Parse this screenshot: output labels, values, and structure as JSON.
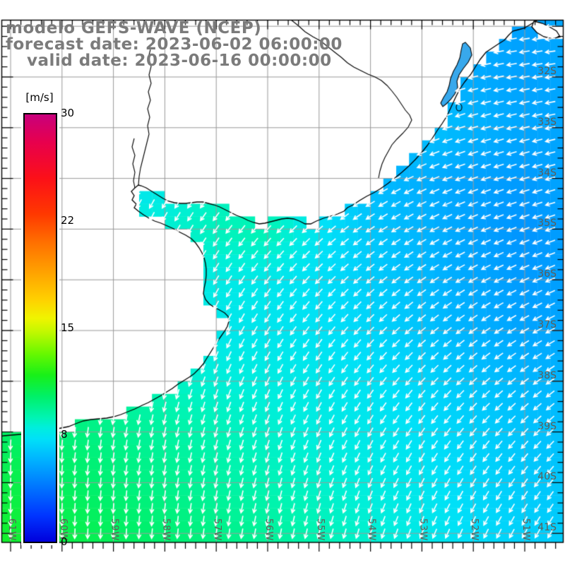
{
  "title": {
    "line1": "modelo GEFS-WAVE (NCEP)",
    "line2": "forecast date: 2023-06-02 06:00:00",
    "line3": "valid date: 2023-06-16 00:00:00"
  },
  "colorbar": {
    "unit": "[m/s]",
    "tick_labels": [
      "30",
      "22",
      "15",
      "8",
      "0"
    ],
    "min": 0,
    "max": 30
  },
  "axes": {
    "lat_labels": [
      "32S",
      "33S",
      "34S",
      "35S",
      "36S",
      "37S",
      "38S",
      "39S",
      "40S",
      "41S"
    ],
    "lon_labels": [
      "61W",
      "60W",
      "59W",
      "58W",
      "57W",
      "56W",
      "55W",
      "54W",
      "53W",
      "52W",
      "51W"
    ]
  },
  "colors": {
    "gridline": "#999999",
    "coast": "#000000",
    "rivers": "#000000",
    "land": "#ffffff",
    "arrow": "#ffffff",
    "frame": "#000000",
    "title": "#7b7b7b",
    "axis_label": "#5f5e56",
    "lagoon_fill": "#38a8ec"
  },
  "chart_data": {
    "type": "heatmap",
    "subtype": "geographic wind field with direction arrows",
    "title": "modelo GEFS-WAVE (NCEP)",
    "field": "wind speed",
    "units": "m/s",
    "colorbar_range": [
      0,
      30
    ],
    "colorbar_tick_values": [
      30,
      22,
      15,
      8,
      0
    ],
    "lon_ticks_degW": [
      61,
      60,
      59,
      58,
      57,
      56,
      55,
      54,
      53,
      52,
      51
    ],
    "lat_ticks_degS": [
      32,
      33,
      34,
      35,
      36,
      37,
      38,
      39,
      40,
      41
    ],
    "grid_lons_degW": [
      62,
      61,
      60,
      59,
      58,
      57,
      56,
      55,
      54,
      53,
      52,
      51,
      50
    ],
    "grid_lats_degS": [
      31,
      32,
      33,
      34,
      35,
      36,
      37,
      38,
      39,
      40,
      41,
      42
    ],
    "wind_speed_ms": [
      [
        8.0,
        8.0,
        8.0,
        8.0,
        8.0,
        8.0,
        7.0,
        6.6,
        6.3,
        6.0,
        5.6,
        5.2,
        5.5
      ],
      [
        8.0,
        8.0,
        8.0,
        8.0,
        8.0,
        7.4,
        7.0,
        6.6,
        6.3,
        6.0,
        5.5,
        5.2,
        5.4
      ],
      [
        8.0,
        8.0,
        8.0,
        8.0,
        7.8,
        7.4,
        7.0,
        6.6,
        6.3,
        6.4,
        5.8,
        5.4,
        5.3
      ],
      [
        8.0,
        8.0,
        8.0,
        7.0,
        7.6,
        8.4,
        8.0,
        6.8,
        6.0,
        5.6,
        5.2,
        5.0,
        5.4
      ],
      [
        8.4,
        8.4,
        8.4,
        8.2,
        8.2,
        8.6,
        8.8,
        7.4,
        6.4,
        5.8,
        5.2,
        4.8,
        5.2
      ],
      [
        8.8,
        8.8,
        8.6,
        8.2,
        8.0,
        7.8,
        7.6,
        7.2,
        6.6,
        6.0,
        5.4,
        5.0,
        5.2
      ],
      [
        9.2,
        9.2,
        9.0,
        8.6,
        8.0,
        7.6,
        7.5,
        7.3,
        6.9,
        6.3,
        5.7,
        5.3,
        5.4
      ],
      [
        9.8,
        9.6,
        9.4,
        9.0,
        8.5,
        8.1,
        7.9,
        7.6,
        7.3,
        6.9,
        6.3,
        5.9,
        5.8
      ],
      [
        10.4,
        10.2,
        9.9,
        9.5,
        9.1,
        8.7,
        8.3,
        7.9,
        7.6,
        7.2,
        6.7,
        6.3,
        6.1
      ],
      [
        11.0,
        10.8,
        10.4,
        9.9,
        9.5,
        9.1,
        8.7,
        8.3,
        7.9,
        7.5,
        6.9,
        6.5,
        6.3
      ],
      [
        11.6,
        11.2,
        10.8,
        10.4,
        10.0,
        9.6,
        9.2,
        8.7,
        8.2,
        7.7,
        7.1,
        6.7,
        6.5
      ],
      [
        12.0,
        11.6,
        11.2,
        10.8,
        10.4,
        10.0,
        9.6,
        9.0,
        8.4,
        7.8,
        7.2,
        6.8,
        6.6
      ]
    ],
    "wind_dir_toward_deg": [
      [
        200,
        206,
        212,
        218,
        225,
        232,
        240,
        247,
        252,
        256,
        259,
        262,
        264
      ],
      [
        197,
        202,
        208,
        214,
        221,
        228,
        236,
        243,
        249,
        253,
        257,
        260,
        262
      ],
      [
        195,
        199,
        204,
        210,
        216,
        223,
        230,
        238,
        244,
        249,
        253,
        256,
        259
      ],
      [
        193,
        197,
        201,
        207,
        213,
        220,
        227,
        234,
        241,
        246,
        250,
        253,
        256
      ],
      [
        191,
        194,
        198,
        203,
        209,
        215,
        222,
        229,
        236,
        241,
        246,
        249,
        252
      ],
      [
        189,
        192,
        195,
        199,
        205,
        211,
        217,
        224,
        230,
        236,
        241,
        245,
        248
      ],
      [
        187,
        189,
        192,
        196,
        201,
        206,
        212,
        218,
        224,
        230,
        235,
        240,
        243
      ],
      [
        184,
        186,
        189,
        192,
        196,
        201,
        206,
        212,
        217,
        223,
        228,
        233,
        236
      ],
      [
        182,
        184,
        186,
        189,
        192,
        196,
        200,
        205,
        210,
        215,
        220,
        224,
        228
      ],
      [
        180,
        182,
        184,
        186,
        188,
        192,
        195,
        199,
        204,
        208,
        212,
        216,
        220
      ],
      [
        179,
        180,
        182,
        183,
        185,
        188,
        191,
        194,
        198,
        202,
        206,
        209,
        212
      ],
      [
        178,
        179,
        180,
        181,
        183,
        185,
        187,
        190,
        193,
        196,
        200,
        203,
        206
      ]
    ],
    "colormap_stops": [
      [
        0,
        "#0000dc"
      ],
      [
        1.8,
        "#0034ff"
      ],
      [
        3.8,
        "#0074ff"
      ],
      [
        5.8,
        "#00b4ff"
      ],
      [
        7.2,
        "#00e0f8"
      ],
      [
        8,
        "#00eedd"
      ],
      [
        8.7,
        "#00f4b4"
      ],
      [
        10.2,
        "#00f068"
      ],
      [
        11.7,
        "#18f018"
      ],
      [
        13.2,
        "#68f800"
      ],
      [
        14.7,
        "#c0f800"
      ],
      [
        15.7,
        "#f0f400"
      ],
      [
        17,
        "#ffd000"
      ],
      [
        19,
        "#ffa000"
      ],
      [
        21,
        "#ff7000"
      ],
      [
        23,
        "#ff3800"
      ],
      [
        25.5,
        "#fc1018"
      ],
      [
        28,
        "#e8004c"
      ],
      [
        30,
        "#c8007c"
      ]
    ],
    "legend_position": "left",
    "grid": true
  },
  "geo": {
    "coast": [
      [
        762,
        28
      ],
      [
        752,
        34
      ],
      [
        742,
        40
      ],
      [
        734,
        42
      ],
      [
        726,
        44
      ],
      [
        720,
        50
      ],
      [
        714,
        57
      ],
      [
        706,
        62
      ],
      [
        697,
        68
      ],
      [
        688,
        74
      ],
      [
        680,
        84
      ],
      [
        673,
        95
      ],
      [
        666,
        106
      ],
      [
        658,
        116
      ],
      [
        651,
        126
      ],
      [
        645,
        138
      ],
      [
        639,
        151
      ],
      [
        633,
        164
      ],
      [
        626,
        175
      ],
      [
        619,
        185
      ],
      [
        612,
        196
      ],
      [
        605,
        206
      ],
      [
        597,
        216
      ],
      [
        588,
        226
      ],
      [
        579,
        235
      ],
      [
        569,
        244
      ],
      [
        559,
        252
      ],
      [
        549,
        260
      ],
      [
        539,
        267
      ],
      [
        529,
        273
      ],
      [
        519,
        278
      ],
      [
        509,
        284
      ],
      [
        500,
        290
      ],
      [
        492,
        294
      ],
      [
        487,
        299
      ],
      [
        478,
        303
      ],
      [
        468,
        306
      ],
      [
        458,
        309
      ],
      [
        448,
        313
      ],
      [
        440,
        317
      ],
      [
        432,
        317
      ],
      [
        424,
        313
      ],
      [
        416,
        310
      ],
      [
        407,
        309
      ],
      [
        399,
        310
      ],
      [
        391,
        312
      ],
      [
        383,
        314
      ],
      [
        375,
        316
      ],
      [
        367,
        317
      ],
      [
        359,
        315
      ],
      [
        351,
        312
      ],
      [
        343,
        308
      ],
      [
        335,
        305
      ],
      [
        327,
        301
      ],
      [
        319,
        297
      ],
      [
        311,
        293
      ],
      [
        303,
        290
      ],
      [
        295,
        288
      ],
      [
        287,
        286
      ],
      [
        279,
        286
      ],
      [
        271,
        287
      ],
      [
        263,
        288
      ],
      [
        255,
        288
      ],
      [
        247,
        287
      ],
      [
        239,
        285
      ],
      [
        231,
        281
      ],
      [
        223,
        276
      ],
      [
        215,
        271
      ],
      [
        207,
        266
      ],
      [
        200,
        263
      ],
      [
        196,
        262
      ],
      [
        191,
        266
      ],
      [
        186,
        271
      ],
      [
        190,
        277
      ],
      [
        187,
        283
      ],
      [
        193,
        289
      ],
      [
        190,
        294
      ],
      [
        196,
        299
      ],
      [
        203,
        304
      ],
      [
        211,
        309
      ],
      [
        219,
        313
      ],
      [
        228,
        316
      ],
      [
        237,
        320
      ],
      [
        246,
        324
      ],
      [
        255,
        329
      ],
      [
        263,
        333
      ],
      [
        271,
        338
      ],
      [
        277,
        344
      ],
      [
        282,
        351
      ],
      [
        286,
        358
      ],
      [
        289,
        365
      ],
      [
        291,
        373
      ],
      [
        292,
        381
      ],
      [
        292,
        390
      ],
      [
        291,
        399
      ],
      [
        289,
        408
      ],
      [
        288,
        416
      ],
      [
        291,
        424
      ],
      [
        296,
        430
      ],
      [
        303,
        435
      ],
      [
        311,
        439
      ],
      [
        318,
        443
      ],
      [
        323,
        448
      ],
      [
        324,
        455
      ],
      [
        322,
        462
      ],
      [
        318,
        469
      ],
      [
        313,
        476
      ],
      [
        308,
        483
      ],
      [
        303,
        491
      ],
      [
        298,
        499
      ],
      [
        293,
        507
      ],
      [
        288,
        515
      ],
      [
        282,
        522
      ],
      [
        275,
        529
      ],
      [
        268,
        534
      ],
      [
        260,
        539
      ],
      [
        252,
        544
      ],
      [
        244,
        550
      ],
      [
        236,
        555
      ],
      [
        228,
        560
      ],
      [
        219,
        565
      ],
      [
        210,
        570
      ],
      [
        201,
        574
      ],
      [
        191,
        579
      ],
      [
        181,
        583
      ],
      [
        171,
        587
      ],
      [
        161,
        590
      ],
      [
        151,
        592
      ],
      [
        140,
        593
      ],
      [
        129,
        594
      ],
      [
        118,
        596
      ],
      [
        107,
        600
      ],
      [
        97,
        604
      ],
      [
        87,
        606
      ],
      [
        76,
        608
      ],
      [
        65,
        610
      ],
      [
        53,
        612
      ],
      [
        41,
        614
      ],
      [
        29,
        615
      ],
      [
        17,
        616
      ],
      [
        5,
        617
      ],
      [
        2,
        618
      ]
    ],
    "island": [
      [
        756,
        30
      ],
      [
        768,
        33
      ],
      [
        778,
        38
      ],
      [
        788,
        44
      ],
      [
        793,
        52
      ],
      [
        782,
        55
      ],
      [
        770,
        52
      ],
      [
        760,
        46
      ],
      [
        753,
        38
      ]
    ],
    "lagoon": [
      [
        659,
        60
      ],
      [
        666,
        68
      ],
      [
        668,
        78
      ],
      [
        663,
        88
      ],
      [
        656,
        97
      ],
      [
        650,
        106
      ],
      [
        647,
        115
      ],
      [
        648,
        124
      ],
      [
        644,
        133
      ],
      [
        638,
        141
      ],
      [
        632,
        147
      ],
      [
        627,
        151
      ],
      [
        624,
        146
      ],
      [
        628,
        138
      ],
      [
        633,
        130
      ],
      [
        636,
        121
      ],
      [
        638,
        111
      ],
      [
        642,
        101
      ],
      [
        647,
        92
      ],
      [
        651,
        82
      ],
      [
        653,
        71
      ],
      [
        655,
        62
      ]
    ],
    "pond": [
      650,
      152,
      4,
      5
    ],
    "rivers": [
      [
        [
          213,
          70
        ],
        [
          210,
          82
        ],
        [
          214,
          94
        ],
        [
          211,
          106
        ],
        [
          214,
          118
        ],
        [
          210,
          130
        ],
        [
          213,
          142
        ],
        [
          209,
          154
        ],
        [
          212,
          166
        ],
        [
          209,
          178
        ],
        [
          211,
          190
        ],
        [
          208,
          202
        ],
        [
          205,
          214
        ],
        [
          202,
          226
        ],
        [
          199,
          238
        ],
        [
          197,
          250
        ],
        [
          196,
          262
        ]
      ],
      [
        [
          190,
          196
        ],
        [
          187,
          208
        ],
        [
          191,
          220
        ],
        [
          188,
          232
        ],
        [
          191,
          244
        ],
        [
          189,
          256
        ],
        [
          191,
          266
        ]
      ],
      [
        [
          412,
          28
        ],
        [
          422,
          36
        ],
        [
          432,
          45
        ],
        [
          443,
          52
        ],
        [
          454,
          58
        ],
        [
          464,
          66
        ],
        [
          474,
          74
        ],
        [
          483,
          81
        ],
        [
          492,
          89
        ],
        [
          501,
          95
        ],
        [
          511,
          100
        ],
        [
          521,
          105
        ],
        [
          531,
          109
        ],
        [
          540,
          114
        ],
        [
          548,
          121
        ],
        [
          555,
          129
        ],
        [
          562,
          138
        ],
        [
          568,
          147
        ],
        [
          574,
          156
        ],
        [
          580,
          163
        ],
        [
          583,
          170
        ],
        [
          578,
          180
        ],
        [
          570,
          189
        ],
        [
          562,
          197
        ],
        [
          555,
          205
        ],
        [
          550,
          214
        ],
        [
          545,
          223
        ],
        [
          541,
          232
        ],
        [
          538,
          242
        ],
        [
          536,
          252
        ]
      ]
    ]
  }
}
